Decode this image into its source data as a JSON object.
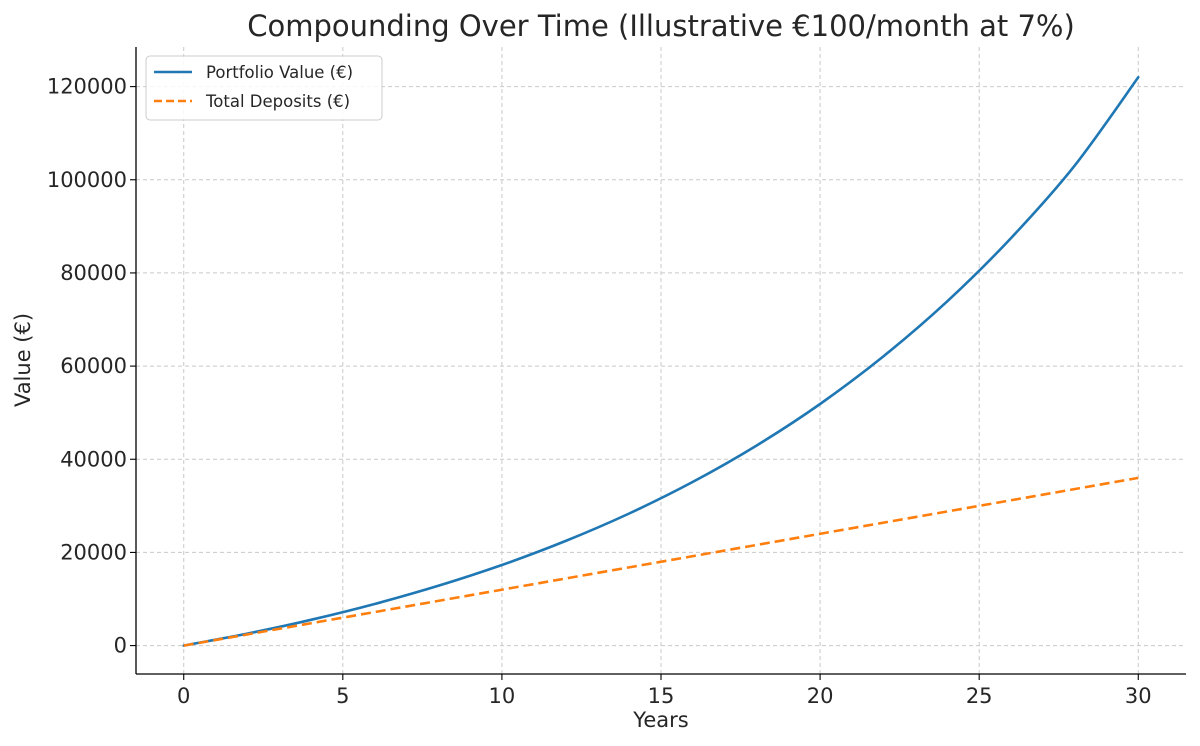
{
  "chart_data": {
    "type": "line",
    "title": "Compounding Over Time (Illustrative €100/month at 7%)",
    "xlabel": "Years",
    "ylabel": "Value (€)",
    "xlim": [
      -1.5,
      31.5
    ],
    "ylim": [
      -6100,
      128500
    ],
    "xticks": [
      0,
      5,
      10,
      15,
      20,
      25,
      30
    ],
    "yticks": [
      0,
      20000,
      40000,
      60000,
      80000,
      100000,
      120000
    ],
    "grid": true,
    "legend_position": "top-left",
    "series": [
      {
        "name": "Portfolio Value (€)",
        "color": "#1f77b4",
        "style": "solid",
        "x": [
          0,
          2,
          4,
          6,
          8,
          10,
          12,
          14,
          16,
          18,
          20,
          22,
          24,
          26,
          28,
          30
        ],
        "values": [
          0,
          2569,
          5525,
          8924,
          12830,
          17308,
          22453,
          28356,
          35138,
          42926,
          51869,
          62147,
          73940,
          87476,
          103022,
          121997
        ]
      },
      {
        "name": "Total Deposits (€)",
        "color": "#ff7f0e",
        "style": "dashed",
        "x": [
          0,
          30
        ],
        "values": [
          0,
          36000
        ]
      }
    ]
  }
}
